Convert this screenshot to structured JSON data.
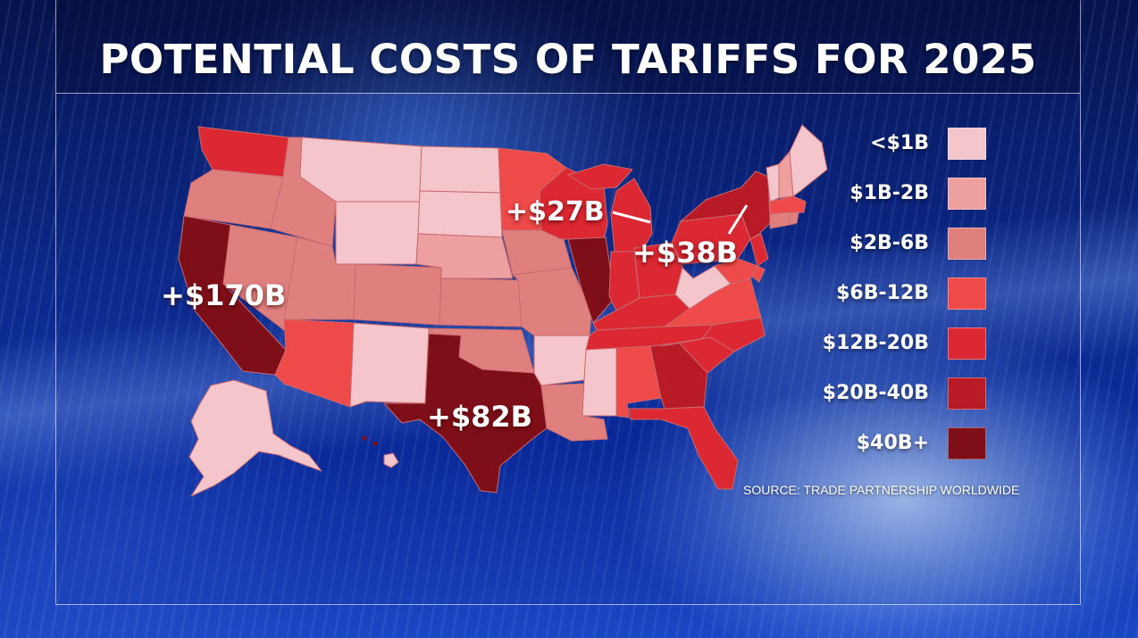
{
  "title": "POTENTIAL COSTS OF TARIFFS FOR 2025",
  "source": "SOURCE: TRADE PARTNERSHIP WORLDWIDE",
  "callouts": {
    "california": "+$170B",
    "texas": "+$82B",
    "illinois": "+$27B",
    "new_york": "+$38B"
  },
  "legend": [
    {
      "label": "<$1B",
      "color": "#f4c6cc"
    },
    {
      "label": "$1B-2B",
      "color": "#ee9f9f"
    },
    {
      "label": "$2B-6B",
      "color": "#e0807e"
    },
    {
      "label": "$6B-12B",
      "color": "#ef4a4a"
    },
    {
      "label": "$12B-20B",
      "color": "#dc2832"
    },
    {
      "label": "$20B-40B",
      "color": "#b81a26"
    },
    {
      "label": "$40B+",
      "color": "#7e0f18"
    }
  ],
  "colors": {
    "lt1": "#f4c6cc",
    "b1_2": "#ee9f9f",
    "b2_6": "#e0807e",
    "b6_12": "#ef4a4a",
    "b12_20": "#dc2832",
    "b20_40": "#b81a26",
    "b40p": "#7e0f18",
    "background": "#0c2a8c"
  }
}
